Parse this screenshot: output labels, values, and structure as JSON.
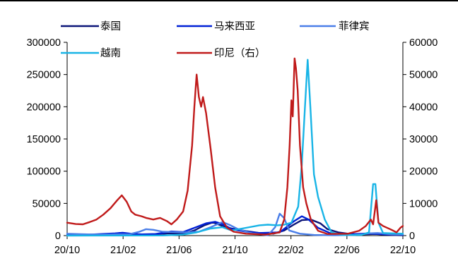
{
  "chart_data": {
    "type": "line",
    "title": "",
    "xlabel": "",
    "ylabel": "",
    "x_ticks": [
      "20/10",
      "21/02",
      "21/06",
      "21/10",
      "22/02",
      "22/06",
      "22/10"
    ],
    "x_range": [
      "2020-10-01",
      "2022-10-15"
    ],
    "y_left": {
      "min": 0,
      "max": 300000,
      "ticks": [
        "0",
        "50000",
        "100000",
        "150000",
        "200000",
        "250000",
        "300000"
      ]
    },
    "y_right": {
      "min": 0,
      "max": 60000,
      "ticks": [
        "0",
        "10000",
        "20000",
        "30000",
        "40000",
        "50000",
        "60000"
      ]
    },
    "grid": false,
    "legend_position": "top",
    "series": [
      {
        "name": "泰国",
        "color": "#0a1478",
        "axis": "left",
        "points": [
          [
            "2020-10-01",
            500
          ],
          [
            "2021-01-10",
            1000
          ],
          [
            "2021-01-25",
            4000
          ],
          [
            "2021-02-10",
            1500
          ],
          [
            "2021-04-01",
            1500
          ],
          [
            "2021-05-15",
            3500
          ],
          [
            "2021-06-15",
            3000
          ],
          [
            "2021-07-10",
            8000
          ],
          [
            "2021-08-01",
            16000
          ],
          [
            "2021-08-20",
            20500
          ],
          [
            "2021-09-10",
            15000
          ],
          [
            "2021-10-01",
            11000
          ],
          [
            "2021-11-01",
            7000
          ],
          [
            "2021-12-01",
            4000
          ],
          [
            "2022-01-01",
            3000
          ],
          [
            "2022-01-25",
            8000
          ],
          [
            "2022-02-15",
            17000
          ],
          [
            "2022-03-05",
            24000
          ],
          [
            "2022-03-25",
            25000
          ],
          [
            "2022-04-15",
            19000
          ],
          [
            "2022-05-01",
            10000
          ],
          [
            "2022-05-25",
            5000
          ],
          [
            "2022-06-20",
            2500
          ],
          [
            "2022-07-20",
            2000
          ],
          [
            "2022-08-15",
            2500
          ],
          [
            "2022-09-15",
            1000
          ],
          [
            "2022-10-15",
            600
          ]
        ]
      },
      {
        "name": "马来西亚",
        "color": "#0020d6",
        "axis": "left",
        "points": [
          [
            "2020-10-01",
            300
          ],
          [
            "2020-11-01",
            1000
          ],
          [
            "2020-12-01",
            2000
          ],
          [
            "2021-01-15",
            3500
          ],
          [
            "2021-02-01",
            4500
          ],
          [
            "2021-02-20",
            3000
          ],
          [
            "2021-03-15",
            2000
          ],
          [
            "2021-04-15",
            2500
          ],
          [
            "2021-05-20",
            6500
          ],
          [
            "2021-06-15",
            5500
          ],
          [
            "2021-07-10",
            12000
          ],
          [
            "2021-08-05",
            19000
          ],
          [
            "2021-08-25",
            21500
          ],
          [
            "2021-09-10",
            18000
          ],
          [
            "2021-10-01",
            10000
          ],
          [
            "2021-11-01",
            6000
          ],
          [
            "2021-12-01",
            4000
          ],
          [
            "2022-01-15",
            5000
          ],
          [
            "2022-02-15",
            22000
          ],
          [
            "2022-03-05",
            30000
          ],
          [
            "2022-03-20",
            25000
          ],
          [
            "2022-04-10",
            12000
          ],
          [
            "2022-05-10",
            3000
          ],
          [
            "2022-06-15",
            2000
          ],
          [
            "2022-08-01",
            3500
          ],
          [
            "2022-09-01",
            2000
          ],
          [
            "2022-10-15",
            1500
          ]
        ]
      },
      {
        "name": "菲律宾",
        "color": "#4a7ee8",
        "axis": "left",
        "points": [
          [
            "2020-10-01",
            3000
          ],
          [
            "2020-11-01",
            2200
          ],
          [
            "2020-12-15",
            1500
          ],
          [
            "2021-01-15",
            2000
          ],
          [
            "2021-02-15",
            2000
          ],
          [
            "2021-03-10",
            6000
          ],
          [
            "2021-03-25",
            10000
          ],
          [
            "2021-04-10",
            9000
          ],
          [
            "2021-05-01",
            6000
          ],
          [
            "2021-06-15",
            5000
          ],
          [
            "2021-07-20",
            6000
          ],
          [
            "2021-08-15",
            13000
          ],
          [
            "2021-09-10",
            21000
          ],
          [
            "2021-09-25",
            17000
          ],
          [
            "2021-10-15",
            10000
          ],
          [
            "2021-11-15",
            3500
          ],
          [
            "2021-12-20",
            500
          ],
          [
            "2022-01-05",
            13000
          ],
          [
            "2022-01-15",
            34000
          ],
          [
            "2022-01-25",
            27000
          ],
          [
            "2022-02-05",
            8000
          ],
          [
            "2022-03-01",
            3000
          ],
          [
            "2022-04-01",
            1000
          ],
          [
            "2022-05-15",
            500
          ],
          [
            "2022-07-01",
            1000
          ],
          [
            "2022-08-01",
            3500
          ],
          [
            "2022-08-20",
            4000
          ],
          [
            "2022-09-20",
            2000
          ],
          [
            "2022-10-15",
            1500
          ]
        ]
      },
      {
        "name": "越南",
        "color": "#18b4e6",
        "axis": "left",
        "points": [
          [
            "2020-10-01",
            50
          ],
          [
            "2021-05-01",
            200
          ],
          [
            "2021-06-15",
            1500
          ],
          [
            "2021-07-15",
            5000
          ],
          [
            "2021-08-15",
            11000
          ],
          [
            "2021-09-10",
            13000
          ],
          [
            "2021-10-01",
            8000
          ],
          [
            "2021-11-01",
            12000
          ],
          [
            "2021-12-01",
            16000
          ],
          [
            "2021-12-20",
            17000
          ],
          [
            "2022-01-10",
            16000
          ],
          [
            "2022-01-25",
            17000
          ],
          [
            "2022-02-10",
            20000
          ],
          [
            "2022-02-25",
            45000
          ],
          [
            "2022-03-05",
            110000
          ],
          [
            "2022-03-12",
            200000
          ],
          [
            "2022-03-18",
            273000
          ],
          [
            "2022-03-24",
            200000
          ],
          [
            "2022-04-01",
            95000
          ],
          [
            "2022-04-10",
            60000
          ],
          [
            "2022-04-25",
            25000
          ],
          [
            "2022-05-10",
            5000
          ],
          [
            "2022-06-01",
            1000
          ],
          [
            "2022-07-15",
            1000
          ],
          [
            "2022-08-01",
            5000
          ],
          [
            "2022-08-10",
            80000
          ],
          [
            "2022-08-15",
            80000
          ],
          [
            "2022-08-22",
            20000
          ],
          [
            "2022-09-01",
            4000
          ],
          [
            "2022-10-15",
            3000
          ]
        ]
      },
      {
        "name": "印尼（右）",
        "color": "#c01a1a",
        "axis": "right",
        "points": [
          [
            "2020-10-01",
            4000
          ],
          [
            "2020-10-20",
            3600
          ],
          [
            "2020-11-05",
            3500
          ],
          [
            "2020-11-20",
            4200
          ],
          [
            "2020-12-05",
            5000
          ],
          [
            "2020-12-20",
            6500
          ],
          [
            "2021-01-05",
            8500
          ],
          [
            "2021-01-20",
            11000
          ],
          [
            "2021-01-30",
            12500
          ],
          [
            "2021-02-10",
            10500
          ],
          [
            "2021-02-20",
            7500
          ],
          [
            "2021-03-01",
            6500
          ],
          [
            "2021-03-15",
            6000
          ],
          [
            "2021-03-25",
            5500
          ],
          [
            "2021-04-10",
            5000
          ],
          [
            "2021-04-25",
            5500
          ],
          [
            "2021-05-10",
            4500
          ],
          [
            "2021-05-20",
            3500
          ],
          [
            "2021-06-01",
            5000
          ],
          [
            "2021-06-15",
            7500
          ],
          [
            "2021-06-25",
            14000
          ],
          [
            "2021-07-05",
            28000
          ],
          [
            "2021-07-10",
            40000
          ],
          [
            "2021-07-15",
            50000
          ],
          [
            "2021-07-20",
            43000
          ],
          [
            "2021-07-25",
            40000
          ],
          [
            "2021-07-29",
            43000
          ],
          [
            "2021-08-05",
            38000
          ],
          [
            "2021-08-15",
            27000
          ],
          [
            "2021-08-25",
            15000
          ],
          [
            "2021-09-05",
            6000
          ],
          [
            "2021-09-20",
            2500
          ],
          [
            "2021-10-05",
            1200
          ],
          [
            "2021-11-01",
            600
          ],
          [
            "2021-12-15",
            300
          ],
          [
            "2022-01-15",
            1000
          ],
          [
            "2022-01-25",
            5000
          ],
          [
            "2022-02-01",
            15000
          ],
          [
            "2022-02-06",
            28000
          ],
          [
            "2022-02-10",
            42000
          ],
          [
            "2022-02-13",
            37000
          ],
          [
            "2022-02-17",
            55000
          ],
          [
            "2022-02-20",
            52000
          ],
          [
            "2022-02-24",
            45000
          ],
          [
            "2022-03-01",
            28000
          ],
          [
            "2022-03-08",
            15000
          ],
          [
            "2022-03-15",
            10000
          ],
          [
            "2022-03-25",
            5000
          ],
          [
            "2022-04-10",
            1500
          ],
          [
            "2022-05-01",
            500
          ],
          [
            "2022-06-15",
            600
          ],
          [
            "2022-07-10",
            1500
          ],
          [
            "2022-07-25",
            3000
          ],
          [
            "2022-08-05",
            5000
          ],
          [
            "2022-08-10",
            3500
          ],
          [
            "2022-08-17",
            11000
          ],
          [
            "2022-08-22",
            4000
          ],
          [
            "2022-09-01",
            3000
          ],
          [
            "2022-09-20",
            1800
          ],
          [
            "2022-10-01",
            1000
          ],
          [
            "2022-10-10",
            2500
          ],
          [
            "2022-10-15",
            3000
          ]
        ]
      }
    ]
  }
}
